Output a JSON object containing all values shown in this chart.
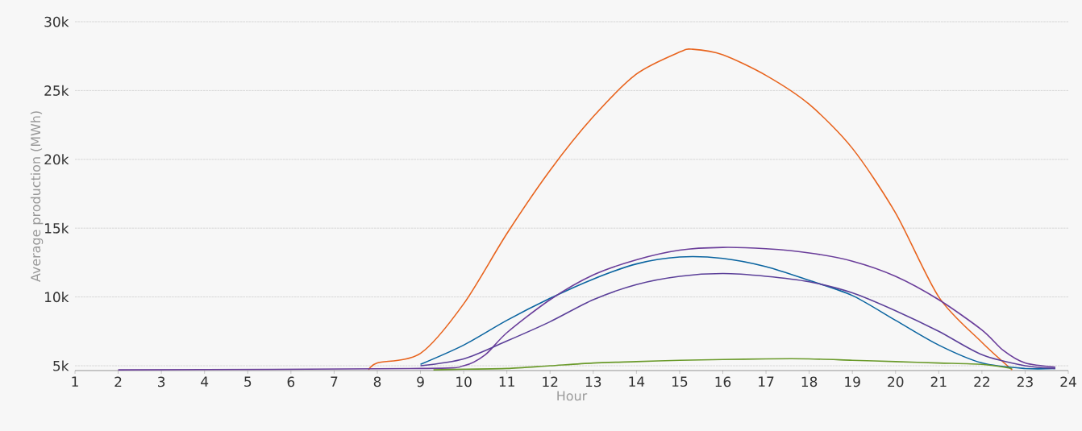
{
  "chart_data": {
    "type": "line",
    "xlabel": "Hour",
    "ylabel": "Average production (MWh)",
    "xlim": [
      1,
      24
    ],
    "ylim": [
      4650,
      30000
    ],
    "xticks": [
      1,
      2,
      3,
      4,
      5,
      6,
      7,
      8,
      9,
      10,
      11,
      12,
      13,
      14,
      15,
      16,
      17,
      18,
      19,
      20,
      21,
      22,
      23,
      24
    ],
    "yticks": [
      {
        "value": 5000,
        "label": "5k"
      },
      {
        "value": 10000,
        "label": "10k"
      },
      {
        "value": 15000,
        "label": "15k"
      },
      {
        "value": 20000,
        "label": "20k"
      },
      {
        "value": 25000,
        "label": "25k"
      },
      {
        "value": 30000,
        "label": "30k"
      }
    ],
    "grid": "y",
    "series": [
      {
        "color": "#e8641e",
        "x": [
          7.8,
          8,
          9,
          10,
          11,
          12,
          13,
          14,
          15,
          15.3,
          16,
          17,
          18,
          19,
          20,
          21,
          22,
          22.7
        ],
        "values": [
          4700,
          5200,
          5900,
          9500,
          14600,
          19200,
          23100,
          26200,
          27800,
          28000,
          27600,
          26100,
          24000,
          20800,
          16100,
          10000,
          6700,
          4700
        ]
      },
      {
        "color": "#0a64a0",
        "x": [
          9,
          10,
          11,
          12,
          13,
          14,
          15,
          16,
          17,
          18,
          19,
          20,
          21,
          22,
          23,
          23.7
        ],
        "values": [
          5100,
          6500,
          8300,
          9900,
          11300,
          12400,
          12900,
          12800,
          12200,
          11200,
          10100,
          8300,
          6500,
          5200,
          4800,
          4800
        ]
      },
      {
        "color": "#6a3d9a",
        "x": [
          2,
          9,
          10,
          10.5,
          11,
          12,
          13,
          14,
          15,
          16,
          17,
          18,
          19,
          20,
          21,
          22,
          22.5,
          23,
          23.7
        ],
        "values": [
          4700,
          4800,
          5000,
          5800,
          7400,
          9800,
          11600,
          12700,
          13400,
          13600,
          13500,
          13200,
          12600,
          11500,
          9800,
          7600,
          6100,
          5200,
          4900
        ]
      },
      {
        "color": "#5b3f99",
        "x": [
          9,
          10,
          11,
          12,
          13,
          14,
          15,
          16,
          17,
          18,
          19,
          20,
          21,
          22,
          23,
          23.7
        ],
        "values": [
          5000,
          5500,
          6800,
          8200,
          9800,
          10900,
          11500,
          11700,
          11500,
          11100,
          10300,
          9000,
          7500,
          5800,
          5000,
          4800
        ]
      },
      {
        "color": "#6a9a2a",
        "x": [
          9.3,
          10,
          11,
          12,
          13,
          14,
          15,
          16,
          17,
          18,
          19,
          20,
          21,
          22,
          22.7
        ],
        "values": [
          4700,
          4750,
          4800,
          5000,
          5200,
          5300,
          5400,
          5450,
          5500,
          5500,
          5400,
          5300,
          5200,
          5100,
          4800
        ]
      }
    ]
  }
}
